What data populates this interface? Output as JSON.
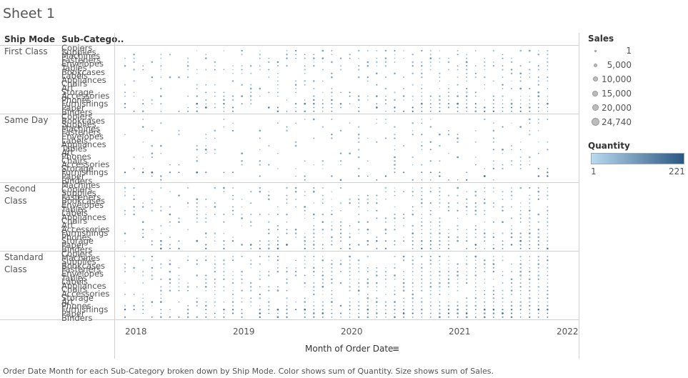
{
  "sheet_title": "Sheet 1",
  "headers": {
    "ship_mode": "Ship Mode",
    "sub_category": "Sub-Catego.."
  },
  "ship_modes": [
    {
      "label": "First Class",
      "subcats": [
        "Copiers",
        "Supplies",
        "Machines",
        "Fasteners",
        "Envelopes",
        "Tables",
        "Bookcases",
        "Labels",
        "Appliances",
        "Chairs",
        "Art",
        "Storage",
        "Accessories",
        "Phones",
        "Furnishings",
        "Paper",
        "Binders"
      ]
    },
    {
      "label": "Same Day",
      "subcats": [
        "Copiers",
        "Bookcases",
        "Supplies",
        "Machines",
        "Fasteners",
        "Envelopes",
        "Labels",
        "Appliances",
        "Tables",
        "Art",
        "Phones",
        "Chairs",
        "Accessories",
        "Storage",
        "Furnishings",
        "Paper",
        "Binders"
      ]
    },
    {
      "label": "Second Class",
      "subcats": [
        "Machines",
        "Copiers",
        "Supplies",
        "Fasteners",
        "Bookcases",
        "Envelopes",
        "Tables",
        "Labels",
        "Appliances",
        "Chairs",
        "Art",
        "Accessories",
        "Furnishings",
        "Phones",
        "Storage",
        "Paper",
        "Binders"
      ]
    },
    {
      "label": "Standard Class",
      "subcats": [
        "Copiers",
        "Machines",
        "Supplies",
        "Bookcases",
        "Fasteners",
        "Envelopes",
        "Tables",
        "Labels",
        "Appliances",
        "Chairs",
        "Accessories",
        "Storage",
        "Art",
        "Phones",
        "Furnishings",
        "Paper",
        "Binders"
      ]
    }
  ],
  "x_axis": {
    "title": "Month of Order Date",
    "ticks": [
      "2018",
      "2019",
      "2020",
      "2021",
      "2022"
    ]
  },
  "caption": "Order Date Month for each Sub-Category broken down by Ship Mode.  Color shows sum of Quantity.  Size shows sum of Sales.",
  "legend": {
    "sales_title": "Sales",
    "sales_items": [
      "1",
      "5,000",
      "10,000",
      "15,000",
      "20,000",
      "24,740"
    ],
    "quantity_title": "Quantity",
    "quantity_min": "1",
    "quantity_max": "221",
    "color_low": "#b9d9ee",
    "color_high": "#2a5783"
  },
  "chart_data": {
    "type": "scatter",
    "title": "Sheet 1",
    "xlabel": "Month of Order Date",
    "x_ticks": [
      "2018",
      "2019",
      "2020",
      "2021",
      "2022"
    ],
    "x_range": [
      "2018-01",
      "2021-12"
    ],
    "color_encoding": {
      "field": "Quantity",
      "range": [
        1,
        221
      ]
    },
    "size_encoding": {
      "field": "Sales",
      "range": [
        1,
        24740
      ]
    },
    "rows": [
      "First Class",
      "Same Day",
      "Second Class",
      "Standard Class"
    ],
    "density_by_row": [
      0.42,
      0.22,
      0.45,
      0.62
    ],
    "grid": false
  }
}
